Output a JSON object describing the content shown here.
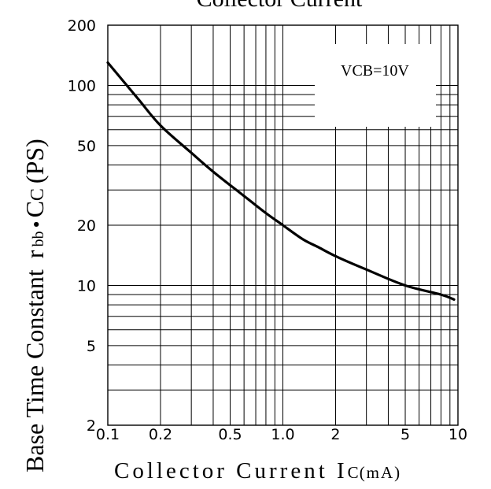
{
  "chart_data": {
    "type": "line",
    "title": "Collector Current",
    "xlabel_main": "Collector Current I",
    "xlabel_sub": "C",
    "xlabel_unit": "(mA)",
    "ylabel_main": "Base Time Constant",
    "ylabel_r": "r",
    "ylabel_bb": "bb",
    "ylabel_dot": "•",
    "ylabel_c": "C",
    "ylabel_csub": "C",
    "ylabel_unit": "(PS)",
    "x_scale": "log",
    "y_scale": "log",
    "xlim": [
      0.1,
      10
    ],
    "ylim": [
      2,
      200
    ],
    "grid": true,
    "x_ticks": [
      0.1,
      0.2,
      0.5,
      1.0,
      2,
      5,
      10
    ],
    "x_tick_labels": [
      "0.1",
      "0.2",
      "0.5",
      "1.0",
      "2",
      "5",
      "10"
    ],
    "y_ticks": [
      2,
      5,
      10,
      20,
      50,
      100,
      200
    ],
    "y_tick_labels": [
      "2",
      "5",
      "10",
      "20",
      "50",
      "100",
      "200"
    ],
    "annotation": "VCB=10V",
    "series": [
      {
        "x": [
          0.1,
          0.15,
          0.2,
          0.3,
          0.4,
          0.6,
          0.8,
          1.0,
          1.3,
          1.6,
          2.0,
          3.0,
          5.0,
          8.0,
          9.5
        ],
        "y": [
          130,
          85,
          63,
          46,
          37,
          28,
          23,
          20,
          17,
          15.5,
          14,
          12,
          10,
          9,
          8.5
        ],
        "color": "#000000"
      }
    ]
  }
}
